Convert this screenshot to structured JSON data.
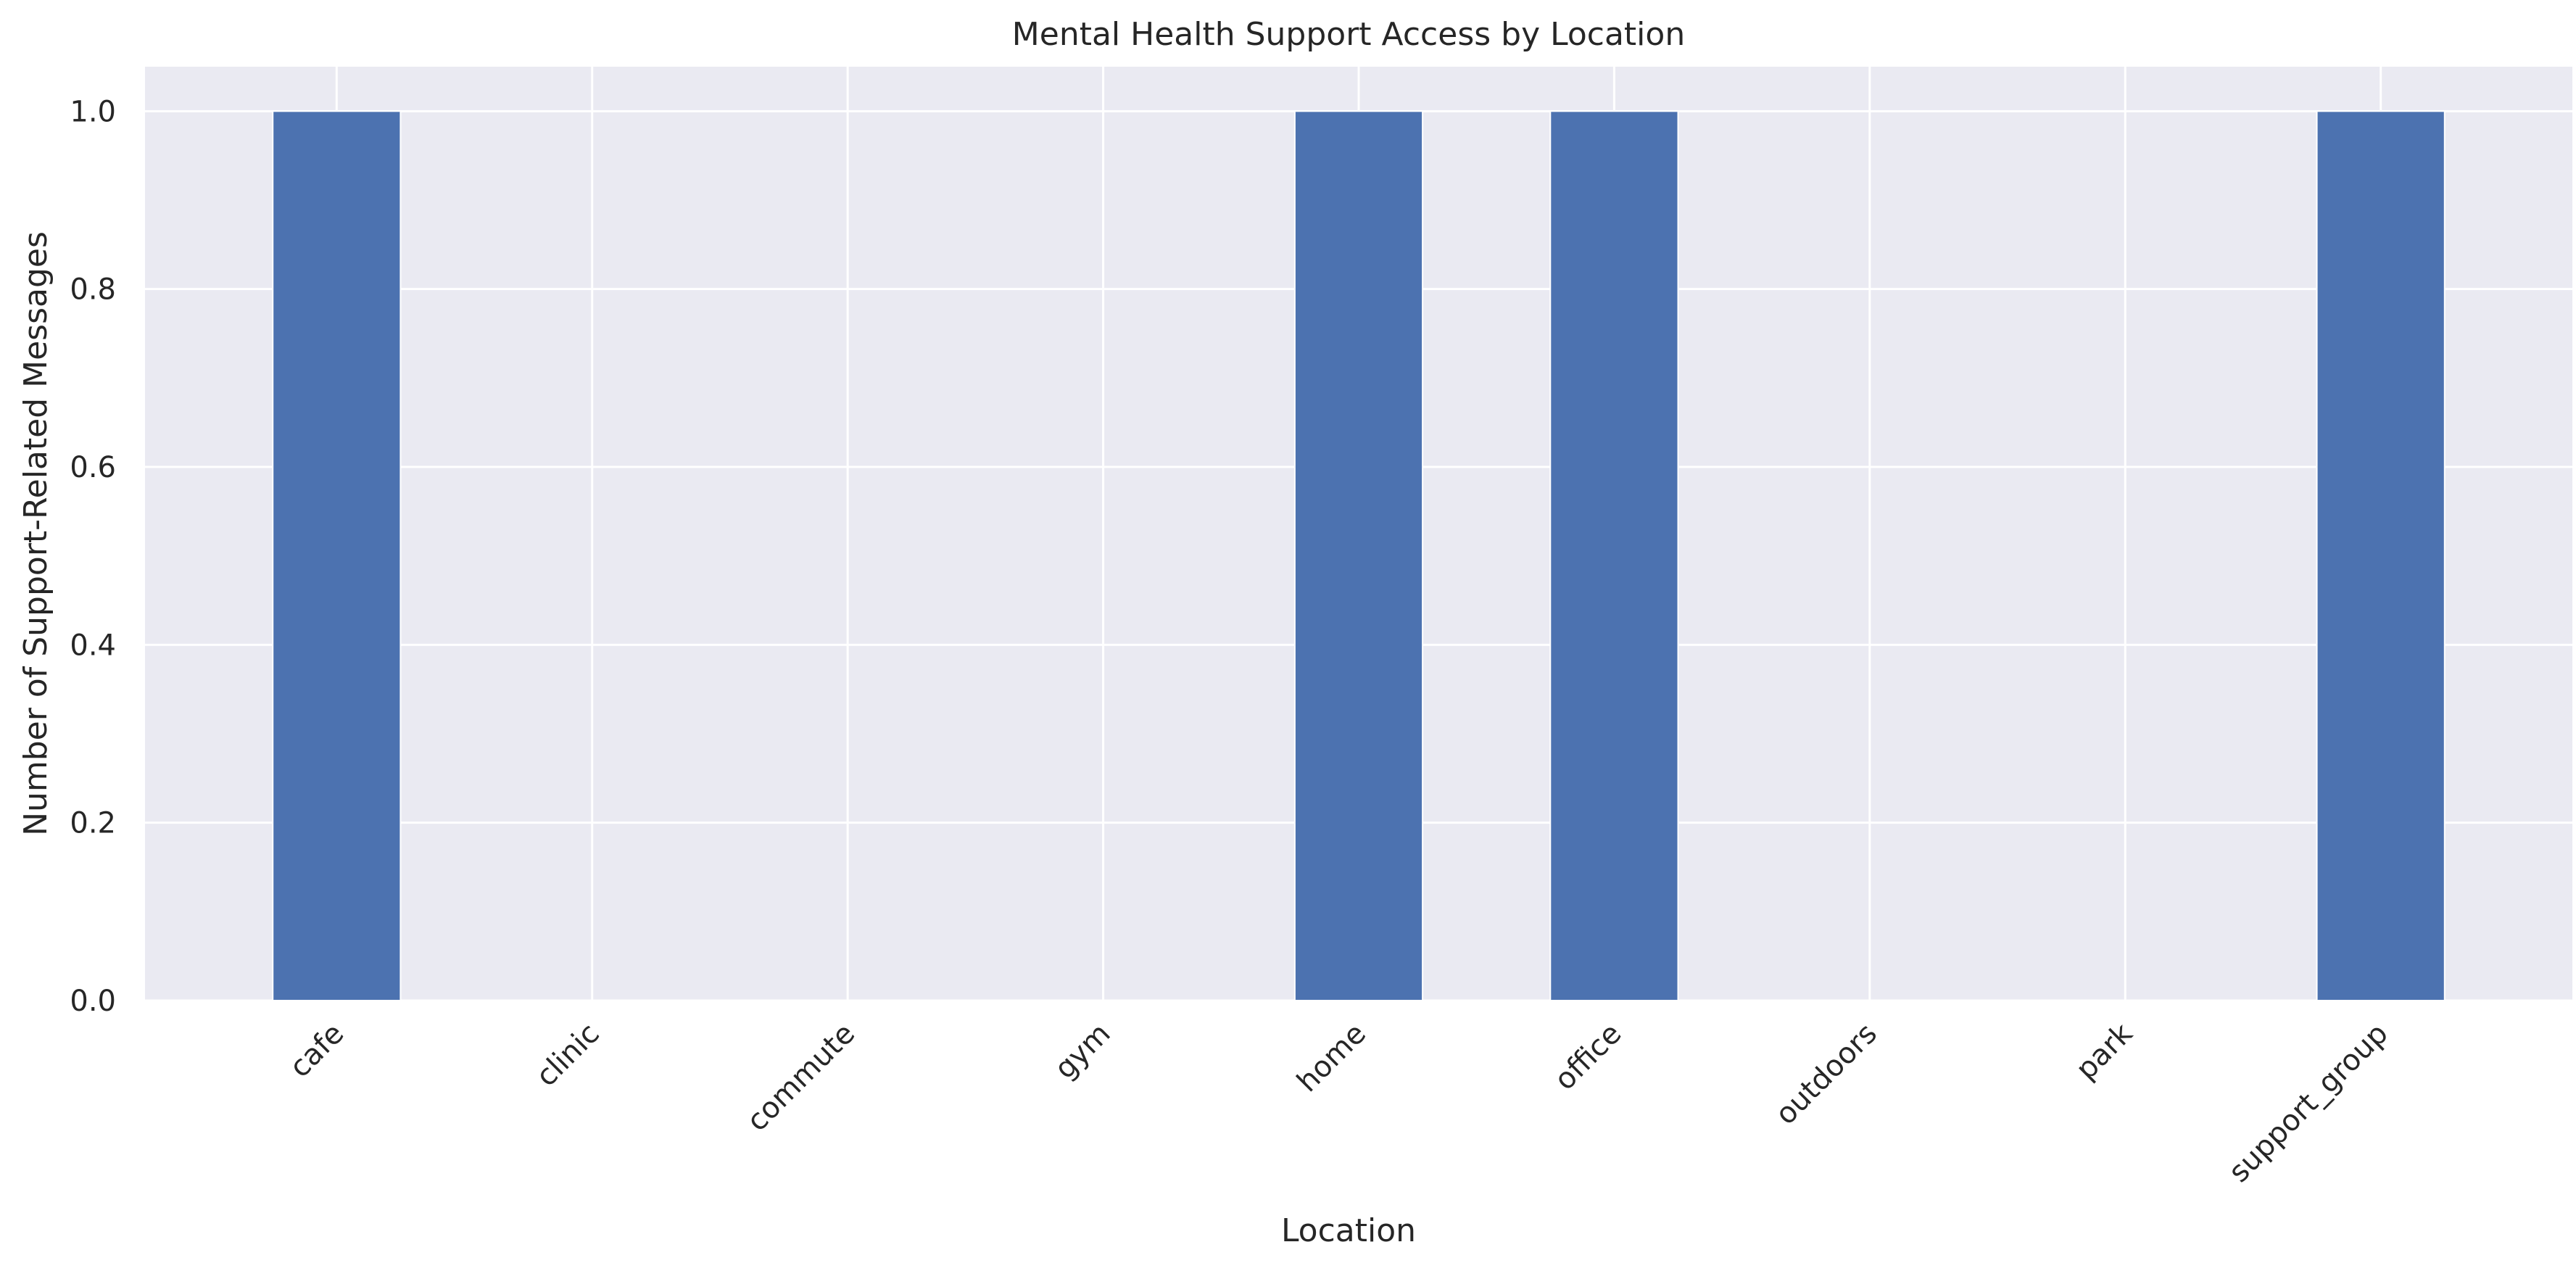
{
  "chart_data": {
    "type": "bar",
    "title": "Mental Health Support Access by Location",
    "xlabel": "Location",
    "ylabel": "Number of Support-Related Messages",
    "categories": [
      "cafe",
      "clinic",
      "commute",
      "gym",
      "home",
      "office",
      "outdoors",
      "park",
      "support_group"
    ],
    "values": [
      1,
      0,
      0,
      0,
      1,
      1,
      0,
      0,
      1
    ],
    "ylim": [
      0,
      1.05
    ],
    "yticks": [
      0.0,
      0.2,
      0.4,
      0.6,
      0.8,
      1.0
    ],
    "ytick_labels": [
      "0.0",
      "0.2",
      "0.4",
      "0.6",
      "0.8",
      "1.0"
    ],
    "grid": true,
    "bar_color": "#4c72b0",
    "background_color": "#eaeaf2",
    "grid_color": "#ffffff"
  }
}
